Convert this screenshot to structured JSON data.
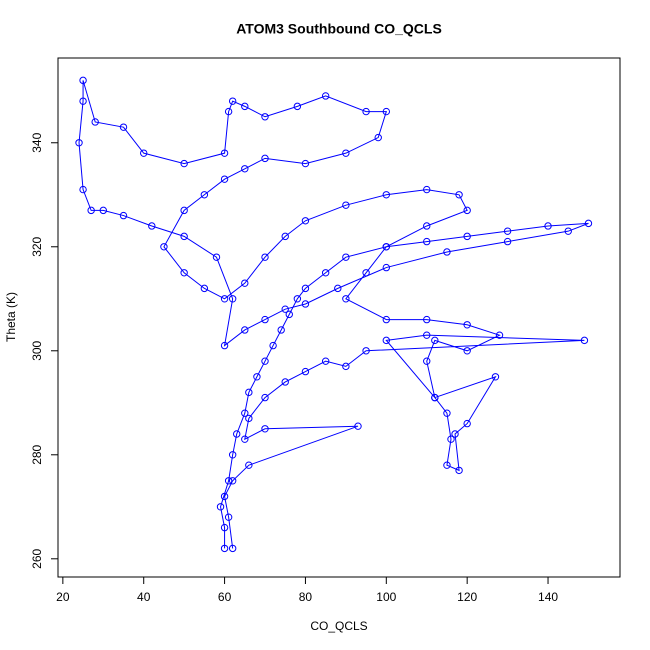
{
  "chart_data": {
    "type": "line",
    "markers": "circle",
    "title": "ATOM3 Southbound CO_QCLS",
    "x_label": "CO_QCLS",
    "y_label": "Theta (K)",
    "xlim": [
      18.8,
      157.8
    ],
    "ylim": [
      256.5,
      356.3
    ],
    "xticks": [
      20,
      40,
      60,
      80,
      100,
      120,
      140
    ],
    "yticks": [
      260,
      280,
      300,
      320,
      340
    ],
    "x": [
      60,
      60,
      59,
      61,
      62,
      63,
      65,
      66,
      68,
      70,
      72,
      74,
      76,
      78,
      80,
      85,
      90,
      100,
      110,
      120,
      130,
      140,
      150,
      145,
      130,
      115,
      100,
      88,
      80,
      75,
      70,
      65,
      60,
      62,
      58,
      50,
      42,
      35,
      30,
      27,
      25,
      24,
      25,
      25,
      28,
      35,
      40,
      50,
      60,
      61,
      62,
      65,
      70,
      78,
      85,
      95,
      100,
      98,
      90,
      80,
      70,
      65,
      60,
      55,
      50,
      45,
      50,
      55,
      60,
      65,
      70,
      75,
      80,
      90,
      100,
      110,
      118,
      120,
      110,
      100,
      95,
      90,
      100,
      110,
      120,
      128,
      120,
      112,
      110,
      112,
      115,
      116,
      115,
      118,
      117,
      120,
      127,
      112,
      100,
      110,
      149,
      95,
      90,
      85,
      80,
      75,
      70,
      66,
      65,
      70,
      93,
      66,
      62,
      60,
      61,
      62
    ],
    "series": [
      {
        "name": "Theta",
        "color": "#0000ff",
        "values": [
          262,
          266,
          270,
          275,
          280,
          284,
          288,
          292,
          295,
          298,
          301,
          304,
          307,
          310,
          312,
          315,
          318,
          320,
          321,
          322,
          323,
          324,
          324.5,
          323,
          321,
          319,
          316,
          312,
          309,
          308,
          306,
          304,
          301,
          310,
          318,
          322,
          324,
          326,
          327,
          327,
          331,
          340,
          348,
          352,
          344,
          343,
          338,
          336,
          338,
          346,
          348,
          347,
          345,
          347,
          349,
          346,
          346,
          341,
          338,
          336,
          337,
          335,
          333,
          330,
          327,
          320,
          315,
          312,
          310,
          313,
          318,
          322,
          325,
          328,
          330,
          331,
          330,
          327,
          324,
          320,
          315,
          310,
          306,
          306,
          305,
          303,
          300,
          302,
          298,
          291,
          288,
          283,
          278,
          277,
          284,
          286,
          295,
          291,
          302,
          303,
          302,
          300,
          297,
          298,
          296,
          294,
          291,
          287,
          283,
          285,
          285.5,
          278,
          275,
          272,
          268,
          262
        ]
      }
    ]
  }
}
